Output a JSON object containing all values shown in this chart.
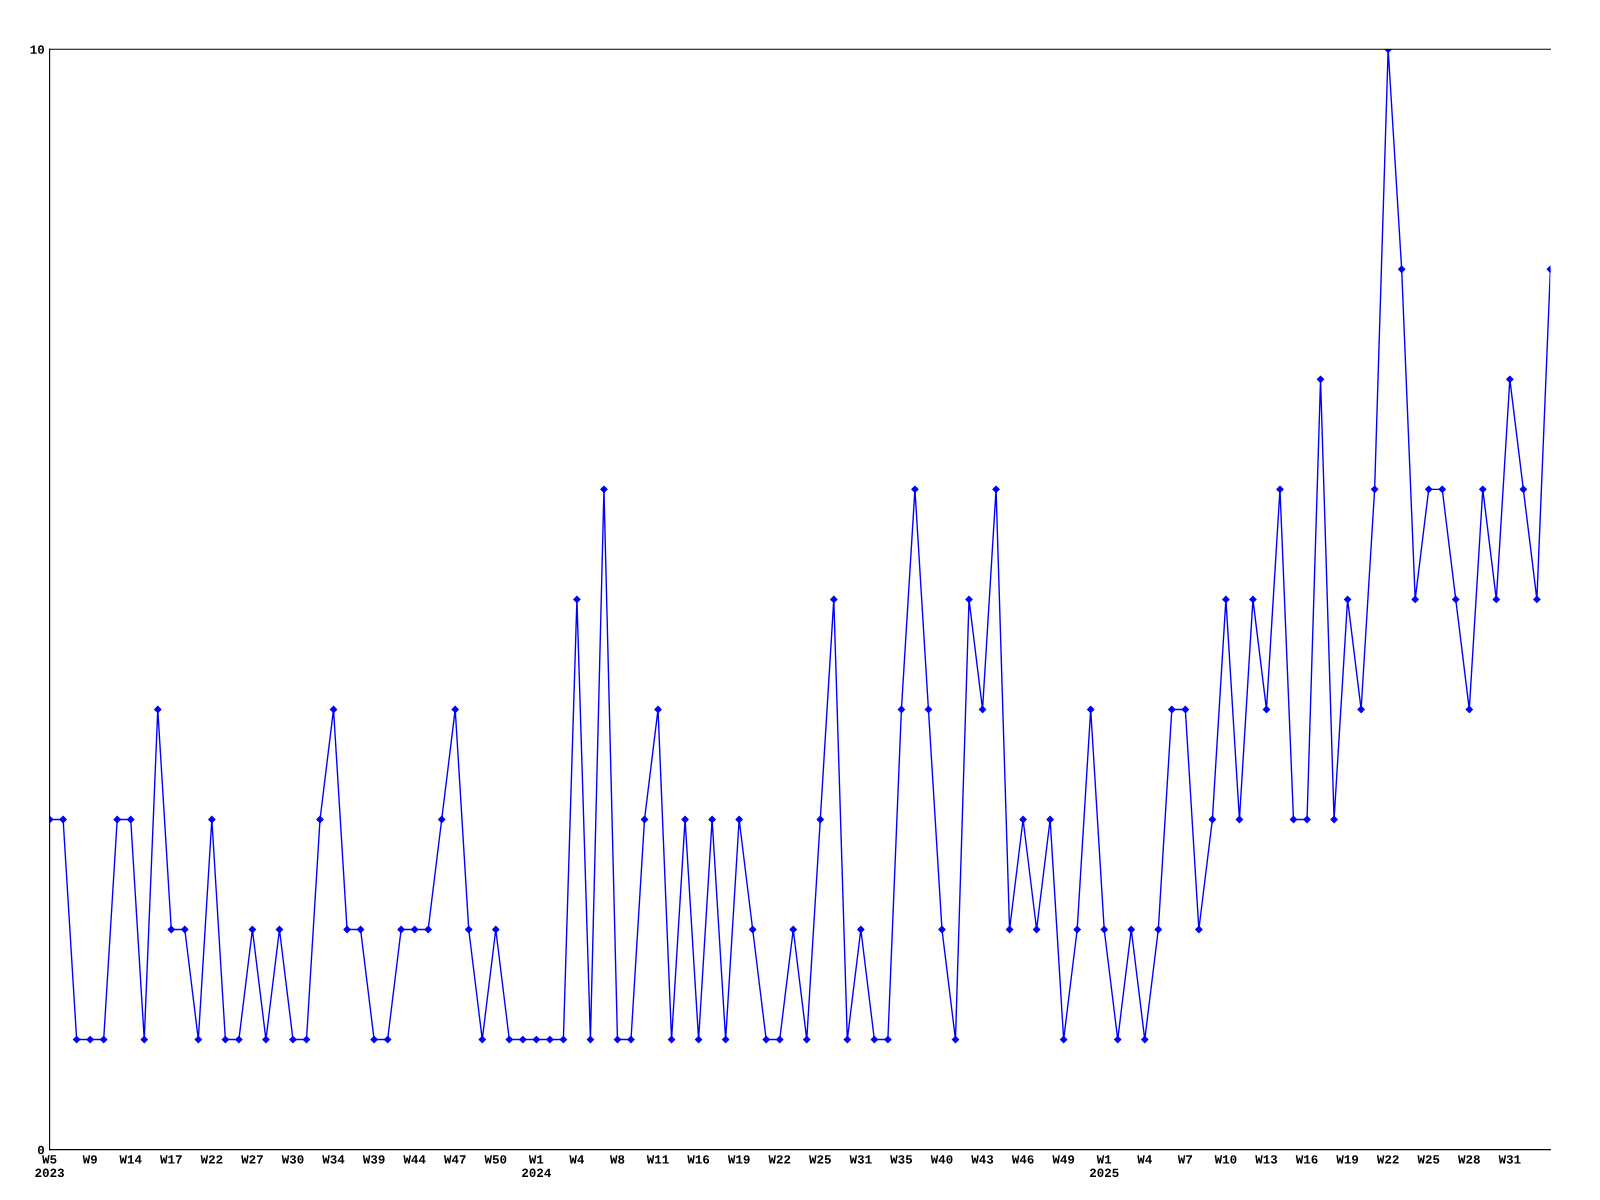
{
  "chart_data": {
    "type": "line",
    "categories": [
      "W5\n2023",
      null,
      null,
      "W9",
      null,
      null,
      "W14",
      null,
      null,
      "W17",
      null,
      null,
      "W22",
      null,
      null,
      "W27",
      null,
      null,
      "W30",
      null,
      null,
      "W34",
      null,
      null,
      "W39",
      null,
      null,
      "W44",
      null,
      null,
      "W47",
      null,
      null,
      "W50",
      null,
      null,
      "W1\n2024",
      null,
      null,
      "W4",
      null,
      null,
      "W8",
      null,
      null,
      "W11",
      null,
      null,
      "W16",
      null,
      null,
      "W19",
      null,
      null,
      "W22",
      null,
      null,
      "W25",
      null,
      null,
      "W31",
      null,
      null,
      "W35",
      null,
      null,
      "W40",
      null,
      null,
      "W43",
      null,
      null,
      "W46",
      null,
      null,
      "W49",
      null,
      null,
      "W1\n2025",
      null,
      null,
      "W4",
      null,
      null,
      "W7",
      null,
      null,
      "W10",
      null,
      null,
      "W13",
      null,
      null,
      "W16",
      null,
      null,
      "W19",
      null,
      null,
      "W22",
      null,
      null,
      "W25",
      null,
      null,
      "W28",
      null,
      null,
      "W31",
      null,
      null,
      null
    ],
    "series": [
      {
        "color": "#0000ff",
        "values": [
          3,
          3,
          1,
          1,
          1,
          3,
          3,
          1,
          4,
          2,
          2,
          1,
          3,
          1,
          1,
          2,
          1,
          2,
          1,
          1,
          3,
          4,
          2,
          2,
          1,
          1,
          2,
          2,
          2,
          3,
          4,
          2,
          1,
          2,
          1,
          1,
          1,
          1,
          1,
          5,
          1,
          6,
          1,
          1,
          3,
          4,
          1,
          3,
          1,
          3,
          1,
          3,
          2,
          1,
          1,
          2,
          1,
          3,
          5,
          1,
          2,
          1,
          1,
          4,
          6,
          4,
          2,
          1,
          5,
          4,
          6,
          2,
          3,
          2,
          3,
          1,
          2,
          4,
          2,
          1,
          2,
          1,
          2,
          4,
          4,
          2,
          3,
          5,
          3,
          5,
          4,
          6,
          3,
          3,
          7,
          3,
          5,
          4,
          6,
          10,
          8,
          5,
          6,
          6,
          5,
          4,
          6,
          5,
          7,
          6,
          5,
          8
        ]
      }
    ],
    "ylim": [
      0,
      10
    ],
    "yticks": [
      0,
      10
    ],
    "grid": false,
    "legend": false,
    "marker": "diamond",
    "line_style": "solid"
  }
}
